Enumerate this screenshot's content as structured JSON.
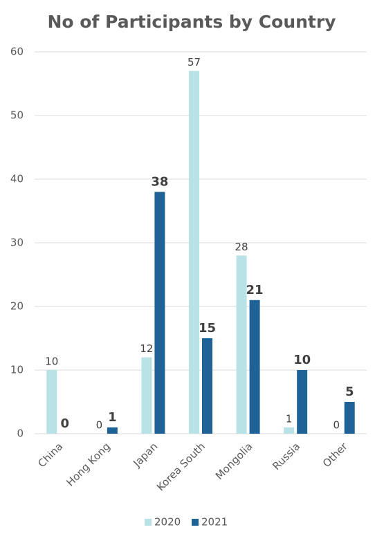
{
  "chart_data": {
    "type": "bar",
    "title": "No of Participants by Country",
    "categories": [
      "China",
      "Hong Kong",
      "Japan",
      "Korea South",
      "Mongolia",
      "Russia",
      "Other"
    ],
    "series": [
      {
        "name": "2020",
        "color": "#b8e2e6",
        "values": [
          10,
          0,
          12,
          57,
          28,
          1,
          0
        ]
      },
      {
        "name": "2021",
        "color": "#1f6396",
        "values": [
          0,
          1,
          38,
          15,
          21,
          10,
          5
        ]
      }
    ],
    "ylim": [
      0,
      60
    ],
    "yticks": [
      0,
      10,
      20,
      30,
      40,
      50,
      60
    ],
    "grid": true,
    "legend": "bottom"
  }
}
